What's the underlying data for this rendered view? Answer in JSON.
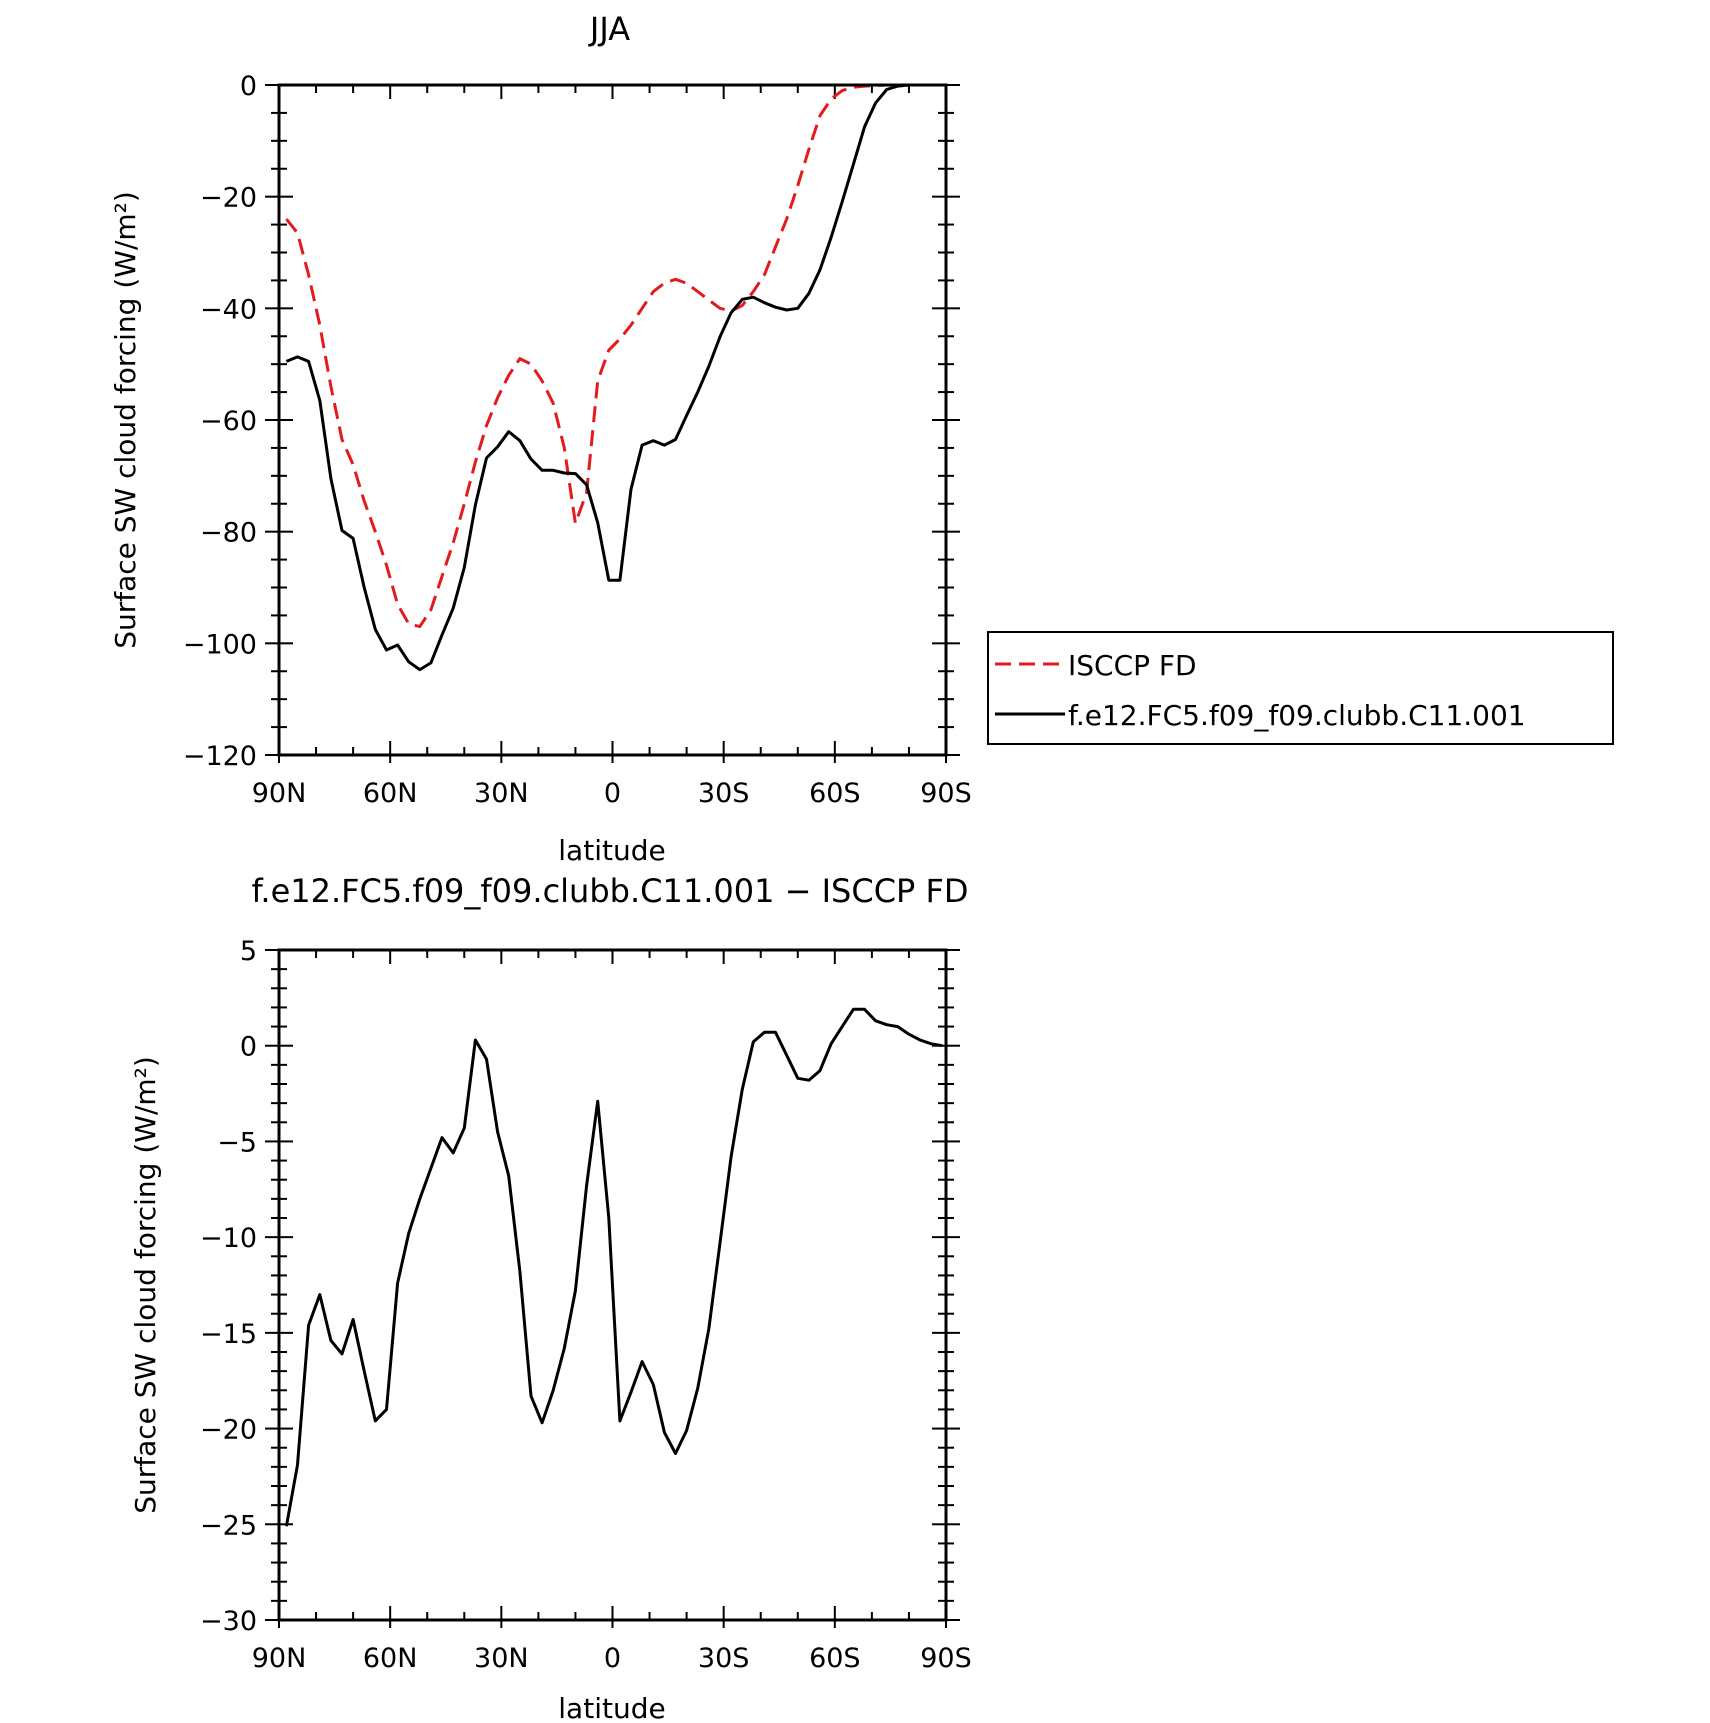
{
  "chart_data": [
    {
      "type": "line",
      "title": "JJA",
      "xlabel": "latitude",
      "ylabel": "Surface SW cloud forcing (W/m²)",
      "xlim": [
        90,
        -90
      ],
      "ylim": [
        -120,
        0
      ],
      "x_ticks": [
        90,
        60,
        30,
        0,
        -30,
        -60,
        -90
      ],
      "x_tick_labels": [
        "90N",
        "60N",
        "30N",
        "0",
        "30S",
        "60S",
        "90S"
      ],
      "y_ticks": [
        0,
        -20,
        -40,
        -60,
        -80,
        -100,
        -120
      ],
      "y_tick_labels": [
        "0",
        "−20",
        "−40",
        "−60",
        "−80",
        "−100",
        "−120"
      ],
      "legend_position": "right",
      "series": [
        {
          "name": "ISCCP FD",
          "color": "#e41a1c",
          "dash": "dashed",
          "x": [
            88,
            85,
            82,
            79,
            76,
            73,
            70,
            67,
            64,
            61,
            58,
            55,
            52,
            49,
            46,
            43,
            40,
            37,
            34,
            31,
            28,
            25,
            22,
            19,
            16,
            13,
            10,
            7,
            4,
            1,
            -2,
            -5,
            -8,
            -11,
            -14,
            -17,
            -20,
            -23,
            -26,
            -29,
            -32,
            -35,
            -38,
            -41,
            -44,
            -47,
            -50,
            -53,
            -56,
            -59,
            -62,
            -65,
            -68,
            -71,
            -74,
            -77,
            -80,
            -83,
            -86,
            -89
          ],
          "y": [
            -24,
            -26.5,
            -34,
            -43,
            -54,
            -63.5,
            -68,
            -74.5,
            -80,
            -86,
            -93,
            -96.5,
            -97,
            -94,
            -88,
            -82,
            -75,
            -67.5,
            -61,
            -56,
            -52,
            -49,
            -50,
            -53,
            -57,
            -65,
            -78.5,
            -73,
            -53,
            -47.5,
            -45.5,
            -43,
            -40,
            -37,
            -35.5,
            -34.8,
            -35.5,
            -37,
            -38.5,
            -40,
            -40.5,
            -39.5,
            -37,
            -34,
            -29,
            -24,
            -18,
            -11.5,
            -5.5,
            -2.5,
            -1,
            -0.4,
            -0.2,
            -0.1,
            0,
            0,
            0,
            0,
            0,
            0
          ]
        },
        {
          "name": "f.e12.FC5.f09_f09.clubb.C11.001",
          "color": "#000000",
          "dash": "solid",
          "x": [
            88,
            85,
            82,
            79,
            76,
            73,
            70,
            67,
            64,
            61,
            58,
            55,
            52,
            49,
            46,
            43,
            40,
            37,
            34,
            31,
            28,
            25,
            22,
            19,
            16,
            13,
            10,
            7,
            4,
            1,
            -2,
            -5,
            -8,
            -11,
            -14,
            -17,
            -20,
            -23,
            -26,
            -29,
            -32,
            -35,
            -38,
            -41,
            -44,
            -47,
            -50,
            -53,
            -56,
            -59,
            -62,
            -65,
            -68,
            -71,
            -74,
            -77,
            -80,
            -83,
            -86,
            -89
          ],
          "y": [
            -49.5,
            -48.7,
            -49.5,
            -56.5,
            -70.5,
            -79.8,
            -81.2,
            -90,
            -97.5,
            -101.2,
            -100.3,
            -103.3,
            -104.7,
            -103.5,
            -98.5,
            -93.7,
            -86.4,
            -75.2,
            -66.8,
            -64.8,
            -62.1,
            -63.7,
            -67,
            -69,
            -69,
            -69.5,
            -69.6,
            -71.6,
            -78.4,
            -88.7,
            -88.7,
            -72.4,
            -64.5,
            -63.7,
            -64.5,
            -63.5,
            -59.2,
            -55,
            -50.4,
            -45.1,
            -40.8,
            -38.4,
            -38,
            -39,
            -39.8,
            -40.3,
            -40,
            -37.3,
            -33.1,
            -27.3,
            -20.9,
            -14.2,
            -7.5,
            -3.2,
            -0.8,
            -0.2,
            0,
            0,
            0,
            0
          ]
        }
      ]
    },
    {
      "type": "line",
      "title": "f.e12.FC5.f09_f09.clubb.C11.001 − ISCCP FD",
      "xlabel": "latitude",
      "ylabel": "Surface SW cloud forcing (W/m²)",
      "xlim": [
        90,
        -90
      ],
      "ylim": [
        -30,
        5
      ],
      "x_ticks": [
        90,
        60,
        30,
        0,
        -30,
        -60,
        -90
      ],
      "x_tick_labels": [
        "90N",
        "60N",
        "30N",
        "0",
        "30S",
        "60S",
        "90S"
      ],
      "y_ticks": [
        5,
        0,
        -5,
        -10,
        -15,
        -20,
        -25,
        -30
      ],
      "y_tick_labels": [
        "5",
        "0",
        "−5",
        "−10",
        "−15",
        "−20",
        "−25",
        "−30"
      ],
      "series": [
        {
          "color": "#000000",
          "dash": "solid",
          "x": [
            88,
            85,
            82,
            79,
            76,
            73,
            70,
            67,
            64,
            61,
            58,
            55,
            52,
            49,
            46,
            43,
            40,
            37,
            34,
            31,
            28,
            25,
            22,
            19,
            16,
            13,
            10,
            7,
            4,
            1,
            -2,
            -5,
            -8,
            -11,
            -14,
            -17,
            -20,
            -23,
            -26,
            -29,
            -32,
            -35,
            -38,
            -41,
            -44,
            -47,
            -50,
            -53,
            -56,
            -59,
            -62,
            -65,
            -68,
            -71,
            -74,
            -77,
            -80,
            -83,
            -86,
            -89
          ],
          "y": [
            -25.1,
            -21.9,
            -14.6,
            -13,
            -15.4,
            -16.1,
            -14.3,
            -17,
            -19.6,
            -19,
            -12.4,
            -9.8,
            -8,
            -6.4,
            -4.8,
            -5.6,
            -4.3,
            0.3,
            -0.7,
            -4.5,
            -6.8,
            -11.8,
            -18.3,
            -19.7,
            -18,
            -15.8,
            -12.8,
            -7.3,
            -2.9,
            -9,
            -19.6,
            -18.1,
            -16.5,
            -17.7,
            -20.2,
            -21.3,
            -20.1,
            -17.9,
            -14.8,
            -10.3,
            -5.8,
            -2.3,
            0.2,
            0.7,
            0.7,
            -0.5,
            -1.7,
            -1.8,
            -1.3,
            0.1,
            1,
            1.9,
            1.9,
            1.3,
            1.1,
            1,
            0.6,
            0.3,
            0.1,
            0
          ]
        }
      ]
    }
  ]
}
